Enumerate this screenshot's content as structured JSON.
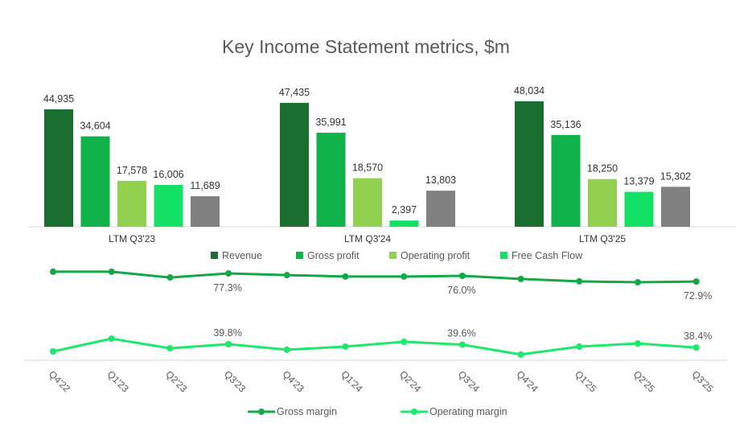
{
  "chart_data": [
    {
      "type": "bar",
      "title": "Key Income Statement metrics, $m",
      "categories": [
        "LTM Q3'23",
        "LTM Q3'24",
        "LTM Q3'25"
      ],
      "series": [
        {
          "name": "Revenue",
          "color": "#1a6e30",
          "values": [
            44935,
            47435,
            48034
          ],
          "labels": [
            "44,935",
            "47,435",
            "48,034"
          ]
        },
        {
          "name": "Gross profit",
          "color": "#0fb34a",
          "values": [
            34604,
            35991,
            35136
          ],
          "labels": [
            "34,604",
            "35,991",
            "35,136"
          ]
        },
        {
          "name": "Operating profit",
          "color": "#92d050",
          "values": [
            17578,
            18570,
            18250
          ],
          "labels": [
            "17,578",
            "18,570",
            "18,250"
          ]
        },
        {
          "name": "Free Cash Flow",
          "color": "#e7e7e7",
          "values": [
            16006,
            2397,
            13379
          ],
          "labels": [
            "16,006",
            "2,397",
            "13,379"
          ]
        },
        {
          "name": "",
          "color": "#808080",
          "values": [
            11689,
            13803,
            15302
          ],
          "labels": [
            "11,689",
            "13,803",
            "15,302"
          ]
        }
      ],
      "legend_position": "bottom"
    },
    {
      "type": "line",
      "categories": [
        "Q4'22",
        "Q1'23",
        "Q2'23",
        "Q3'23",
        "Q4'23",
        "Q1'24",
        "Q2'24",
        "Q3'24",
        "Q4'24",
        "Q1'25",
        "Q2'25",
        "Q3'25"
      ],
      "series": [
        {
          "name": "Gross margin",
          "color": "#0fa040",
          "values": [
            78.2,
            78.2,
            75.1,
            77.3,
            76.4,
            75.6,
            75.6,
            76.0,
            74.3,
            73.0,
            72.5,
            72.9
          ],
          "labels": {
            "3": "77.3%",
            "7": "76.0%",
            "11": "72.9%"
          }
        },
        {
          "name": "Operating margin",
          "color": "#1ee86a",
          "values": [
            36.8,
            42.1,
            38.1,
            39.8,
            37.5,
            38.8,
            40.8,
            39.6,
            35.5,
            38.8,
            40.1,
            38.4
          ],
          "labels": {
            "3": "39.8%",
            "7": "39.6%",
            "11": "38.4%"
          }
        }
      ],
      "legend_position": "bottom"
    }
  ]
}
